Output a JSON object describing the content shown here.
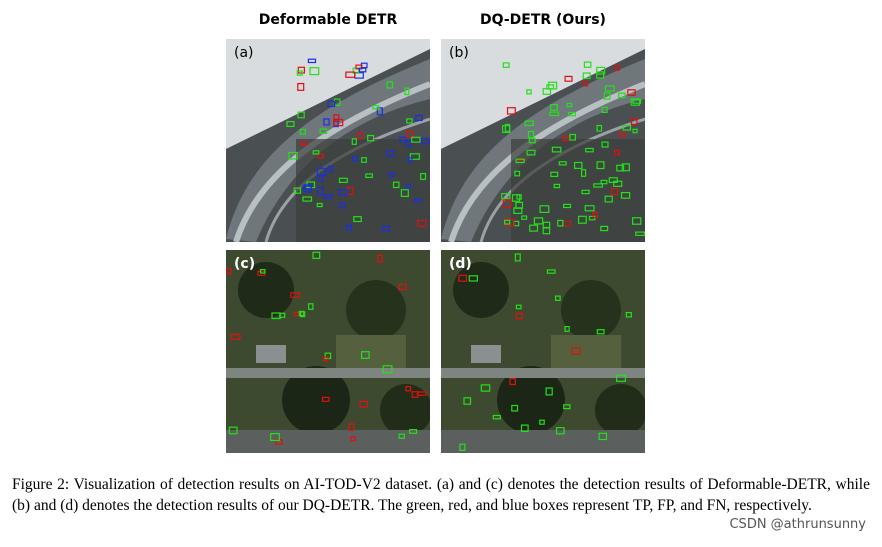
{
  "columns": {
    "left_title": "Deformable DETR",
    "right_title": "DQ-DETR (Ours)"
  },
  "panels": {
    "a": "(a)",
    "b": "(b)",
    "c": "(c)",
    "d": "(d)"
  },
  "caption": "Figure 2: Visualization of detection results on AI-TOD-V2 dataset. (a) and (c) denotes the detection results of Deformable-DETR, while (b) and (d) denotes the detection results of our DQ-DETR. The green, red, and blue boxes represent TP, FP, and FN, respectively.",
  "watermark": "CSDN @athrunsunny",
  "box_colors": {
    "tp": "#22e01a",
    "fp": "#e01010",
    "fn": "#1a2ee8"
  }
}
